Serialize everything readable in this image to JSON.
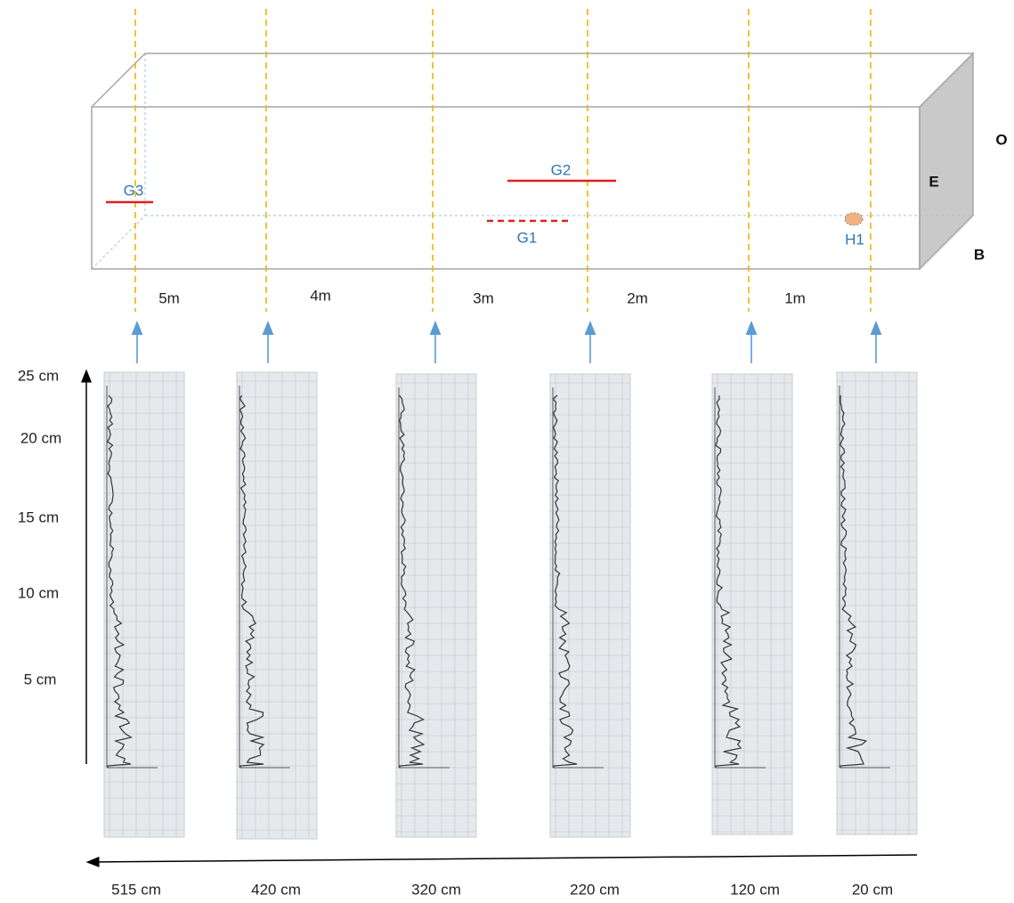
{
  "features": [
    {
      "label": "G3"
    },
    {
      "label": "G2"
    },
    {
      "label": "G1"
    },
    {
      "label": "H1"
    }
  ],
  "faces": {
    "front": "E",
    "top": "O",
    "bottom": "B"
  },
  "distances": [
    "5m",
    "4m",
    "3m",
    "2m",
    "1m"
  ],
  "depth_axis": {
    "ticks": [
      "25 cm",
      "20 cm",
      "15 cm",
      "10 cm",
      "5 cm"
    ]
  },
  "positions": [
    "515 cm",
    "420 cm",
    "320 cm",
    "220 cm",
    "120 cm",
    "20 cm"
  ]
}
